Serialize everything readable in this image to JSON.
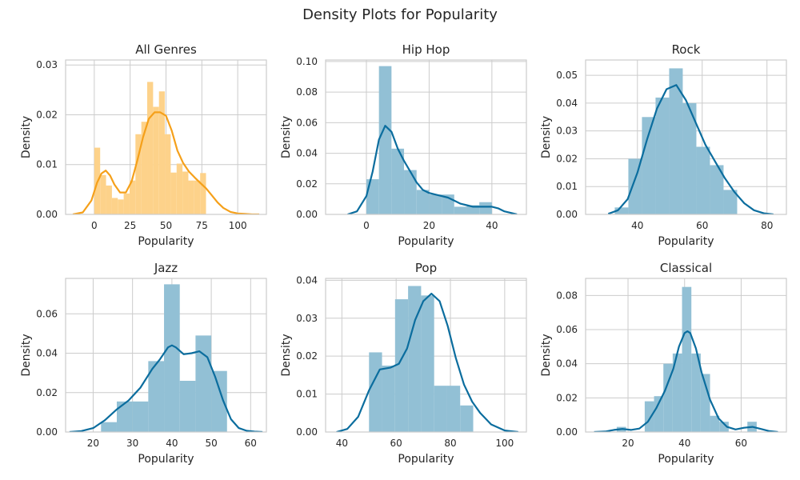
{
  "figure": {
    "title": "Density Plots for Popularity"
  },
  "colors": {
    "all_genres_bar": "#fdd28a",
    "all_genres_line": "#f5a01a",
    "genre_bar": "#92c0d5",
    "genre_line": "#0b6d9e"
  },
  "chart_data": [
    {
      "type": "histogram+density",
      "title": "All Genres",
      "xlabel": "Popularity",
      "ylabel": "Density",
      "xlim": [
        -20,
        120
      ],
      "ylim": [
        0,
        0.031
      ],
      "xticks": [
        0,
        25,
        50,
        75,
        100
      ],
      "yticks": [
        0.0,
        0.01,
        0.02,
        0.03
      ],
      "ytick_labels": [
        "0.00",
        "0.01",
        "0.02",
        "0.03"
      ],
      "bins": {
        "edges": [
          0,
          4.1,
          8.2,
          12.3,
          16.4,
          20.5,
          24.6,
          28.7,
          32.8,
          36.9,
          41.0,
          45.1,
          49.2,
          53.3,
          57.4,
          61.5,
          65.6,
          69.7,
          73.8,
          77.9,
          82.0
        ],
        "values": [
          0.0134,
          0.0079,
          0.0058,
          0.0033,
          0.003,
          0.0042,
          0.0068,
          0.0161,
          0.0186,
          0.0266,
          0.0216,
          0.0247,
          0.0161,
          0.0084,
          0.0102,
          0.0086,
          0.0068,
          0.0068,
          0.0083,
          0.0
        ]
      },
      "density": {
        "x": [
          -15,
          -8,
          -2,
          2,
          5,
          8,
          11,
          14,
          18,
          22,
          26,
          30,
          34,
          38,
          42,
          46,
          50,
          54,
          58,
          62,
          66,
          70,
          74,
          78,
          82,
          86,
          90,
          95,
          100,
          105,
          110,
          115
        ],
        "y": [
          0.0,
          0.0004,
          0.0028,
          0.0064,
          0.0082,
          0.0088,
          0.0078,
          0.006,
          0.0044,
          0.0044,
          0.0066,
          0.0108,
          0.0155,
          0.0192,
          0.0205,
          0.0205,
          0.0198,
          0.0168,
          0.0128,
          0.0103,
          0.0086,
          0.0074,
          0.0063,
          0.0052,
          0.0038,
          0.0024,
          0.0013,
          0.0005,
          0.0002,
          0.0001,
          0.0,
          0.0
        ]
      }
    },
    {
      "type": "histogram+density",
      "title": "Hip Hop",
      "xlabel": "Popularity",
      "ylabel": "Density",
      "xlim": [
        -13,
        51
      ],
      "ylim": [
        0,
        0.101
      ],
      "xticks": [
        0,
        20,
        40
      ],
      "yticks": [
        0.0,
        0.02,
        0.04,
        0.06,
        0.08,
        0.1
      ],
      "ytick_labels": [
        "0.00",
        "0.02",
        "0.04",
        "0.06",
        "0.08",
        "0.10"
      ],
      "bins": {
        "edges": [
          0,
          4,
          8,
          12,
          16,
          20,
          24,
          28,
          32,
          36,
          40
        ],
        "values": [
          0.023,
          0.097,
          0.043,
          0.029,
          0.016,
          0.013,
          0.013,
          0.005,
          0.006,
          0.008
        ]
      },
      "density": {
        "x": [
          -6,
          -3,
          0,
          2,
          4,
          6,
          8,
          10,
          12,
          14,
          16,
          18,
          20,
          22,
          24,
          26,
          28,
          30,
          32,
          34,
          36,
          38,
          40,
          42,
          44,
          46,
          48
        ],
        "y": [
          0.0,
          0.002,
          0.012,
          0.028,
          0.049,
          0.058,
          0.054,
          0.043,
          0.035,
          0.028,
          0.021,
          0.016,
          0.014,
          0.013,
          0.012,
          0.011,
          0.009,
          0.007,
          0.006,
          0.005,
          0.005,
          0.005,
          0.005,
          0.004,
          0.002,
          0.001,
          0.0
        ]
      }
    },
    {
      "type": "histogram+density",
      "title": "Rock",
      "xlabel": "Popularity",
      "ylabel": "Density",
      "xlim": [
        24,
        86
      ],
      "ylim": [
        0,
        0.0555
      ],
      "xticks": [
        40,
        60,
        80
      ],
      "yticks": [
        0.0,
        0.01,
        0.02,
        0.03,
        0.04,
        0.05
      ],
      "ytick_labels": [
        "0.00",
        "0.01",
        "0.02",
        "0.03",
        "0.04",
        "0.05"
      ],
      "bins": {
        "edges": [
          33,
          37.2,
          41.4,
          45.6,
          49.8,
          54.0,
          58.2,
          62.4,
          66.6,
          70.8,
          75.0
        ],
        "values": [
          0.0025,
          0.02,
          0.035,
          0.042,
          0.0525,
          0.04,
          0.0243,
          0.0177,
          0.0088,
          0.0
        ]
      },
      "density": {
        "x": [
          31,
          34,
          37,
          40,
          43,
          46,
          49,
          52,
          55,
          58,
          61,
          64,
          67,
          70,
          73,
          76,
          79,
          82
        ],
        "y": [
          0.0002,
          0.0015,
          0.0055,
          0.015,
          0.027,
          0.038,
          0.045,
          0.0465,
          0.041,
          0.033,
          0.025,
          0.019,
          0.013,
          0.008,
          0.004,
          0.0015,
          0.0004,
          0.0
        ]
      }
    },
    {
      "type": "histogram+density",
      "title": "Jazz",
      "xlabel": "Popularity",
      "ylabel": "Density",
      "xlim": [
        13,
        64
      ],
      "ylim": [
        0,
        0.078
      ],
      "xticks": [
        20,
        30,
        40,
        50,
        60
      ],
      "yticks": [
        0.0,
        0.02,
        0.04,
        0.06
      ],
      "ytick_labels": [
        "0.00",
        "0.02",
        "0.04",
        "0.06"
      ],
      "bins": {
        "edges": [
          22,
          26,
          30,
          34,
          38,
          42,
          46,
          50,
          54
        ],
        "values": [
          0.005,
          0.0155,
          0.0155,
          0.036,
          0.075,
          0.026,
          0.049,
          0.031
        ]
      },
      "density": {
        "x": [
          14,
          17,
          20,
          23,
          26,
          29,
          32,
          35,
          37,
          39,
          40,
          41,
          43,
          45,
          47,
          49,
          51,
          53,
          55,
          57,
          59,
          61,
          63
        ],
        "y": [
          0.0,
          0.0005,
          0.002,
          0.006,
          0.0115,
          0.016,
          0.0225,
          0.032,
          0.037,
          0.043,
          0.044,
          0.043,
          0.0395,
          0.04,
          0.041,
          0.038,
          0.028,
          0.016,
          0.0065,
          0.002,
          0.0006,
          0.0002,
          0.0
        ]
      }
    },
    {
      "type": "histogram+density",
      "title": "Pop",
      "xlabel": "Popularity",
      "ylabel": "Density",
      "xlim": [
        34,
        108
      ],
      "ylim": [
        0,
        0.0405
      ],
      "xticks": [
        40,
        60,
        80,
        100
      ],
      "yticks": [
        0.0,
        0.01,
        0.02,
        0.03,
        0.04
      ],
      "ytick_labels": [
        "0.00",
        "0.01",
        "0.02",
        "0.03",
        "0.04"
      ],
      "bins": {
        "edges": [
          50,
          54.8,
          59.6,
          64.4,
          69.2,
          74.0,
          78.8,
          83.6,
          88.4,
          93.2
        ],
        "values": [
          0.021,
          0.0175,
          0.035,
          0.0385,
          0.036,
          0.0122,
          0.0122,
          0.007,
          0.0
        ]
      },
      "density": {
        "x": [
          38,
          42,
          46,
          50,
          54,
          58,
          61,
          64,
          67,
          70,
          73,
          76,
          79,
          82,
          85,
          88,
          91,
          95,
          100,
          105
        ],
        "y": [
          0.0,
          0.0008,
          0.004,
          0.011,
          0.0165,
          0.017,
          0.018,
          0.022,
          0.0295,
          0.0345,
          0.0365,
          0.0345,
          0.028,
          0.0195,
          0.0125,
          0.008,
          0.005,
          0.002,
          0.0004,
          0.0
        ]
      }
    },
    {
      "type": "histogram+density",
      "title": "Classical",
      "xlabel": "Popularity",
      "ylabel": "Density",
      "xlim": [
        5,
        76
      ],
      "ylim": [
        0,
        0.09
      ],
      "xticks": [
        20,
        40,
        60
      ],
      "yticks": [
        0.0,
        0.02,
        0.04,
        0.06,
        0.08
      ],
      "ytick_labels": [
        "0.00",
        "0.02",
        "0.04",
        "0.06",
        "0.08"
      ],
      "bins": {
        "edges": [
          16,
          19.3,
          22.6,
          25.9,
          29.2,
          32.5,
          35.8,
          39.1,
          42.4,
          45.7,
          49.0,
          52.3,
          55.6,
          58.9,
          62.2,
          65.5
        ],
        "values": [
          0.003,
          0.0,
          0.0,
          0.018,
          0.021,
          0.04,
          0.046,
          0.085,
          0.046,
          0.034,
          0.0095,
          0.006,
          0.0,
          0.0,
          0.006
        ]
      },
      "density": {
        "x": [
          8,
          12,
          15,
          18,
          21,
          24,
          27,
          30,
          33,
          36,
          38,
          40,
          41,
          42,
          44,
          46,
          49,
          52,
          55,
          58,
          61,
          64,
          67,
          70,
          73
        ],
        "y": [
          0.0,
          0.0003,
          0.0012,
          0.0018,
          0.0012,
          0.002,
          0.006,
          0.014,
          0.024,
          0.037,
          0.05,
          0.058,
          0.059,
          0.058,
          0.049,
          0.035,
          0.019,
          0.008,
          0.003,
          0.0015,
          0.0025,
          0.003,
          0.0018,
          0.0005,
          0.0
        ]
      }
    }
  ]
}
